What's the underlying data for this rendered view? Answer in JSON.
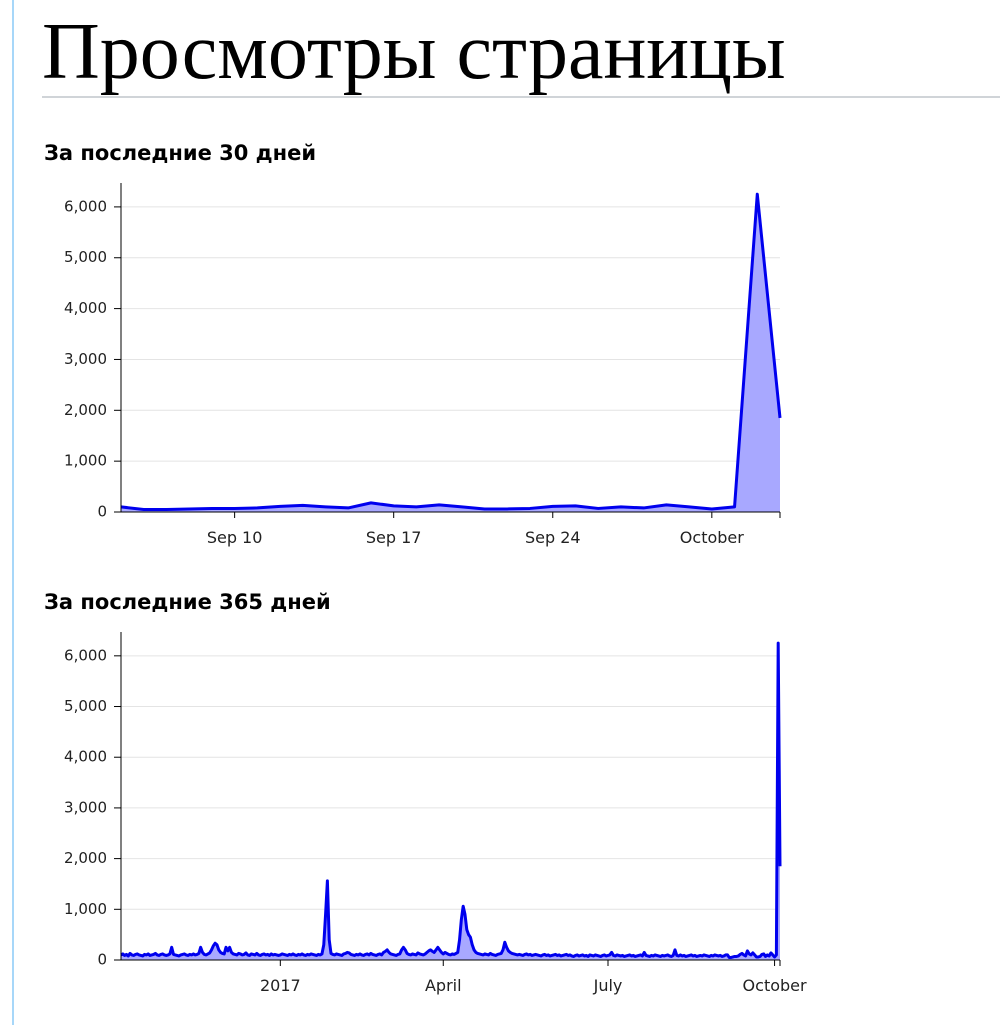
{
  "page": {
    "title": "Просмотры страницы"
  },
  "chart_data": [
    {
      "type": "area",
      "title": "За последние 30 дней",
      "categories": [
        null,
        null,
        null,
        null,
        null,
        "Sep 10",
        null,
        null,
        null,
        null,
        null,
        null,
        "Sep 17",
        null,
        null,
        null,
        null,
        null,
        null,
        "Sep 24",
        null,
        null,
        null,
        null,
        null,
        null,
        "October",
        null,
        null,
        null
      ],
      "values": [
        100,
        50,
        50,
        60,
        70,
        70,
        80,
        110,
        130,
        100,
        80,
        180,
        120,
        100,
        140,
        100,
        60,
        60,
        70,
        110,
        120,
        70,
        100,
        80,
        140,
        100,
        60,
        100,
        6250,
        1850
      ],
      "color": "#0000ee",
      "fill": "#a8a8ff",
      "ylim": [
        0,
        6470
      ],
      "yticks": [
        0,
        {
          "value": 1000,
          "label": "1,000"
        },
        {
          "value": 2000,
          "label": "2,000"
        },
        {
          "value": 3000,
          "label": "3,000"
        },
        {
          "value": 4000,
          "label": "4,000"
        },
        {
          "value": 5000,
          "label": "5,000"
        },
        {
          "value": 6000,
          "label": "6,000"
        }
      ],
      "grid": true
    },
    {
      "type": "area",
      "title": "За последние 365 дней",
      "categories": [
        null,
        null,
        null,
        null,
        null,
        null,
        null,
        null,
        null,
        null,
        null,
        null,
        null,
        null,
        null,
        null,
        null,
        null,
        null,
        null,
        null,
        null,
        null,
        null,
        null,
        null,
        null,
        null,
        null,
        null,
        null,
        null,
        null,
        null,
        null,
        null,
        null,
        null,
        null,
        null,
        null,
        null,
        null,
        null,
        null,
        null,
        null,
        null,
        null,
        null,
        null,
        null,
        null,
        null,
        null,
        null,
        null,
        null,
        null,
        null,
        null,
        null,
        null,
        null,
        null,
        null,
        null,
        null,
        null,
        null,
        null,
        null,
        null,
        null,
        null,
        null,
        null,
        null,
        null,
        null,
        null,
        null,
        null,
        null,
        null,
        null,
        null,
        null,
        "2017",
        null,
        null,
        null,
        null,
        null,
        null,
        null,
        null,
        null,
        null,
        null,
        null,
        null,
        null,
        null,
        null,
        null,
        null,
        null,
        null,
        null,
        null,
        null,
        null,
        null,
        null,
        null,
        null,
        null,
        null,
        null,
        null,
        null,
        null,
        null,
        null,
        null,
        null,
        null,
        null,
        null,
        null,
        null,
        null,
        null,
        null,
        null,
        null,
        null,
        null,
        null,
        null,
        null,
        null,
        null,
        null,
        null,
        null,
        null,
        null,
        null,
        null,
        null,
        null,
        null,
        null,
        null,
        null,
        null,
        null,
        null,
        null,
        null,
        null,
        null,
        null,
        null,
        null,
        null,
        null,
        null,
        null,
        null,
        null,
        null,
        null,
        null,
        null,
        null,
        "April",
        null,
        null,
        null,
        null,
        null,
        null,
        null,
        null,
        null,
        null,
        null,
        null,
        null,
        null,
        null,
        null,
        null,
        null,
        null,
        null,
        null,
        null,
        null,
        null,
        null,
        null,
        null,
        null,
        null,
        null,
        null,
        null,
        null,
        null,
        null,
        null,
        null,
        null,
        null,
        null,
        null,
        null,
        null,
        null,
        null,
        null,
        null,
        null,
        null,
        null,
        null,
        null,
        null,
        null,
        null,
        null,
        null,
        null,
        null,
        null,
        null,
        null,
        null,
        null,
        null,
        null,
        null,
        null,
        null,
        null,
        null,
        null,
        null,
        null,
        null,
        null,
        null,
        null,
        null,
        null,
        null,
        null,
        null,
        null,
        null,
        null,
        null,
        null,
        null,
        null,
        "July",
        null,
        null,
        null,
        null,
        null,
        null,
        null,
        null,
        null,
        null,
        null,
        null,
        null,
        null,
        null,
        null,
        null,
        null,
        null,
        null,
        null,
        null,
        null,
        null,
        null,
        null,
        null,
        null,
        null,
        null,
        null,
        null,
        null,
        null,
        null,
        null,
        null,
        null,
        null,
        null,
        null,
        null,
        null,
        null,
        null,
        null,
        null,
        null,
        null,
        null,
        null,
        null,
        null,
        null,
        null,
        null,
        null,
        null,
        null,
        null,
        null,
        null,
        null,
        null,
        null,
        null,
        null,
        null,
        null,
        null,
        null,
        null,
        null,
        null,
        null,
        null,
        null,
        null,
        null,
        null,
        null,
        null,
        null,
        null,
        null,
        null,
        null,
        null,
        null,
        null,
        null,
        "October",
        null,
        null,
        null
      ],
      "values": [
        100,
        120,
        90,
        110,
        80,
        130,
        100,
        90,
        110,
        120,
        100,
        90,
        80,
        110,
        100,
        120,
        90,
        100,
        110,
        130,
        100,
        90,
        110,
        120,
        100,
        90,
        100,
        120,
        250,
        110,
        100,
        90,
        80,
        100,
        110,
        120,
        100,
        90,
        110,
        100,
        120,
        100,
        110,
        130,
        250,
        150,
        110,
        100,
        120,
        140,
        200,
        280,
        330,
        300,
        200,
        150,
        130,
        120,
        250,
        180,
        250,
        150,
        120,
        110,
        100,
        130,
        120,
        100,
        110,
        140,
        100,
        90,
        120,
        110,
        100,
        130,
        100,
        90,
        110,
        120,
        100,
        110,
        90,
        120,
        100,
        110,
        100,
        90,
        100,
        120,
        110,
        100,
        90,
        110,
        100,
        120,
        100,
        90,
        110,
        100,
        120,
        100,
        90,
        110,
        100,
        120,
        110,
        100,
        90,
        110,
        100,
        120,
        300,
        900,
        1560,
        400,
        130,
        110,
        100,
        120,
        110,
        100,
        90,
        120,
        130,
        150,
        140,
        110,
        100,
        90,
        110,
        100,
        120,
        100,
        90,
        110,
        120,
        100,
        130,
        110,
        100,
        90,
        110,
        120,
        100,
        150,
        170,
        200,
        150,
        120,
        110,
        100,
        90,
        110,
        120,
        200,
        250,
        200,
        130,
        110,
        100,
        120,
        110,
        100,
        140,
        120,
        110,
        100,
        120,
        150,
        180,
        200,
        170,
        150,
        200,
        250,
        200,
        150,
        120,
        150,
        130,
        110,
        100,
        120,
        110,
        130,
        150,
        400,
        800,
        1060,
        900,
        600,
        500,
        450,
        300,
        200,
        150,
        130,
        120,
        110,
        100,
        120,
        110,
        100,
        130,
        110,
        100,
        90,
        110,
        120,
        130,
        200,
        350,
        250,
        180,
        150,
        130,
        120,
        110,
        100,
        110,
        100,
        90,
        110,
        120,
        100,
        110,
        90,
        100,
        110,
        100,
        90,
        80,
        100,
        110,
        90,
        100,
        80,
        90,
        100,
        110,
        90,
        100,
        80,
        90,
        100,
        110,
        90,
        100,
        80,
        70,
        90,
        100,
        80,
        90,
        100,
        80,
        90,
        70,
        100,
        90,
        80,
        100,
        90,
        80,
        70,
        90,
        100,
        80,
        90,
        100,
        150,
        90,
        80,
        100,
        90,
        80,
        90,
        70,
        80,
        90,
        100,
        80,
        90,
        70,
        80,
        90,
        100,
        80,
        150,
        90,
        80,
        70,
        90,
        80,
        100,
        90,
        80,
        70,
        90,
        80,
        90,
        100,
        80,
        70,
        90,
        200,
        90,
        80,
        100,
        80,
        90,
        70,
        80,
        90,
        100,
        80,
        90,
        70,
        80,
        90,
        80,
        100,
        90,
        80,
        70,
        90,
        80,
        100,
        90,
        80,
        90,
        70,
        80,
        100,
        100,
        50,
        50,
        60,
        70,
        70,
        80,
        110,
        130,
        100,
        80,
        180,
        120,
        100,
        140,
        100,
        60,
        60,
        70,
        110,
        120,
        70,
        100,
        80,
        140,
        100,
        60,
        100,
        6250,
        1850
      ],
      "color": "#0000ee",
      "fill": "#a8a8ff",
      "ylim": [
        0,
        6470
      ],
      "yticks": [
        0,
        {
          "value": 1000,
          "label": "1,000"
        },
        {
          "value": 2000,
          "label": "2,000"
        },
        {
          "value": 3000,
          "label": "3,000"
        },
        {
          "value": 4000,
          "label": "4,000"
        },
        {
          "value": 5000,
          "label": "5,000"
        },
        {
          "value": 6000,
          "label": "6,000"
        }
      ],
      "grid": true
    }
  ]
}
